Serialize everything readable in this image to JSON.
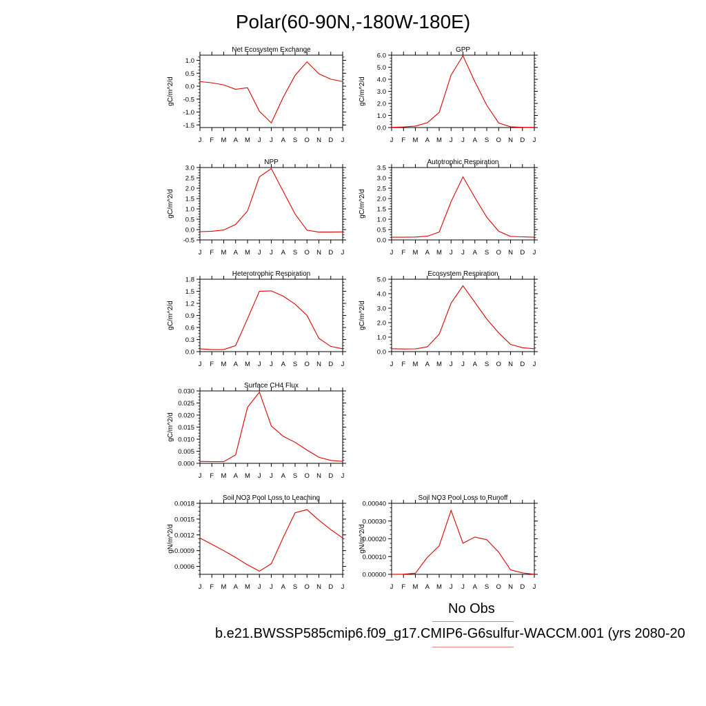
{
  "title": "Polar(60-90N,-180W-180E)",
  "legend": {
    "entries": [
      {
        "label": "No Obs",
        "color": "#8a8af0"
      },
      {
        "label": "b.e21.BWSSP585cmip6.f09_g17.CMIP6-G6sulfur-WACCM.001 (yrs 2080-20",
        "color": "#f08a8a"
      }
    ]
  },
  "chart_data": [
    {
      "type": "line",
      "title": "Net Ecosystem Exchange",
      "ylabel": "gC/m^2/d",
      "categories": [
        "J",
        "F",
        "M",
        "A",
        "M",
        "J",
        "J",
        "A",
        "S",
        "O",
        "N",
        "D",
        "J"
      ],
      "ylim": [
        -1.6,
        1.2
      ],
      "yticks": [
        "1.0",
        "0.5",
        "0.0",
        "-0.5",
        "-1.0",
        "-1.5"
      ],
      "ytick_values": [
        1.0,
        0.5,
        0.0,
        -0.5,
        -1.0,
        -1.5
      ],
      "series": [
        {
          "color": "#e00000",
          "values": [
            0.18,
            0.13,
            0.05,
            -0.12,
            -0.06,
            -0.97,
            -1.42,
            -0.43,
            0.42,
            0.94,
            0.48,
            0.27,
            0.18
          ]
        }
      ]
    },
    {
      "type": "line",
      "title": "GPP",
      "ylabel": "gC/m^2/d",
      "categories": [
        "J",
        "F",
        "M",
        "A",
        "M",
        "J",
        "J",
        "A",
        "S",
        "O",
        "N",
        "D",
        "J"
      ],
      "ylim": [
        0.0,
        6.0
      ],
      "yticks": [
        "6.0",
        "5.0",
        "4.0",
        "3.0",
        "2.0",
        "1.0",
        "0.0"
      ],
      "ytick_values": [
        6,
        5,
        4,
        3,
        2,
        1,
        0
      ],
      "series": [
        {
          "color": "#e00000",
          "values": [
            0.02,
            0.05,
            0.12,
            0.4,
            1.25,
            4.35,
            5.95,
            3.8,
            1.85,
            0.38,
            0.06,
            0.02,
            0.02
          ]
        }
      ]
    },
    {
      "type": "line",
      "title": "NPP",
      "ylabel": "gC/m^2/d",
      "categories": [
        "J",
        "F",
        "M",
        "A",
        "M",
        "J",
        "J",
        "A",
        "S",
        "O",
        "N",
        "D",
        "J"
      ],
      "ylim": [
        -0.5,
        3.0
      ],
      "yticks": [
        "3.0",
        "2.5",
        "2.0",
        "1.5",
        "1.0",
        "0.5",
        "0.0",
        "-0.5"
      ],
      "ytick_values": [
        3.0,
        2.5,
        2.0,
        1.5,
        1.0,
        0.5,
        0.0,
        -0.5
      ],
      "series": [
        {
          "color": "#e00000",
          "values": [
            -0.1,
            -0.08,
            -0.02,
            0.25,
            0.9,
            2.55,
            2.95,
            1.85,
            0.75,
            -0.03,
            -0.12,
            -0.12,
            -0.11
          ]
        }
      ]
    },
    {
      "type": "line",
      "title": "Autotrophic Respiration",
      "ylabel": "gC/m^2/d",
      "categories": [
        "J",
        "F",
        "M",
        "A",
        "M",
        "J",
        "J",
        "A",
        "S",
        "O",
        "N",
        "D",
        "J"
      ],
      "ylim": [
        0.0,
        3.5
      ],
      "yticks": [
        "3.5",
        "3.0",
        "2.5",
        "2.0",
        "1.5",
        "1.0",
        "0.5",
        "0.0"
      ],
      "ytick_values": [
        3.5,
        3.0,
        2.5,
        2.0,
        1.5,
        1.0,
        0.5,
        0.0
      ],
      "series": [
        {
          "color": "#e00000",
          "values": [
            0.13,
            0.13,
            0.14,
            0.18,
            0.38,
            1.85,
            3.05,
            2.05,
            1.1,
            0.42,
            0.17,
            0.15,
            0.13
          ]
        }
      ]
    },
    {
      "type": "line",
      "title": "Heterotrophic Respiration",
      "ylabel": "gC/m^2/d",
      "categories": [
        "J",
        "F",
        "M",
        "A",
        "M",
        "J",
        "J",
        "A",
        "S",
        "O",
        "N",
        "D",
        "J"
      ],
      "ylim": [
        0.0,
        1.8
      ],
      "yticks": [
        "1.8",
        "1.5",
        "1.2",
        "0.9",
        "0.6",
        "0.3",
        "0.0"
      ],
      "ytick_values": [
        1.8,
        1.5,
        1.2,
        0.9,
        0.6,
        0.3,
        0.0
      ],
      "series": [
        {
          "color": "#e00000",
          "values": [
            0.07,
            0.05,
            0.05,
            0.15,
            0.82,
            1.5,
            1.51,
            1.38,
            1.18,
            0.9,
            0.33,
            0.13,
            0.07
          ]
        }
      ]
    },
    {
      "type": "line",
      "title": "Ecosystem Respiration",
      "ylabel": "gC/m^2/d",
      "categories": [
        "J",
        "F",
        "M",
        "A",
        "M",
        "J",
        "J",
        "A",
        "S",
        "O",
        "N",
        "D",
        "J"
      ],
      "ylim": [
        0.0,
        5.0
      ],
      "yticks": [
        "5.0",
        "4.0",
        "3.0",
        "2.0",
        "1.0",
        "0.0"
      ],
      "ytick_values": [
        5,
        4,
        3,
        2,
        1,
        0
      ],
      "series": [
        {
          "color": "#e00000",
          "values": [
            0.2,
            0.18,
            0.19,
            0.33,
            1.2,
            3.35,
            4.55,
            3.4,
            2.25,
            1.3,
            0.5,
            0.27,
            0.2
          ]
        }
      ]
    },
    {
      "type": "line",
      "title": "Surface CH4 Flux",
      "ylabel": "gC/m^2/d",
      "categories": [
        "J",
        "F",
        "M",
        "A",
        "M",
        "J",
        "J",
        "A",
        "S",
        "O",
        "N",
        "D",
        "J"
      ],
      "ylim": [
        0.0,
        0.03
      ],
      "yticks": [
        "0.030",
        "0.025",
        "0.020",
        "0.015",
        "0.010",
        "0.005",
        "0.000"
      ],
      "ytick_values": [
        0.03,
        0.025,
        0.02,
        0.015,
        0.01,
        0.005,
        0.0
      ],
      "series": [
        {
          "color": "#e00000",
          "values": [
            0.0008,
            0.0007,
            0.0007,
            0.0035,
            0.0232,
            0.0295,
            0.0155,
            0.0112,
            0.0087,
            0.0055,
            0.0025,
            0.0012,
            0.0008
          ]
        }
      ]
    },
    {
      "type": "line",
      "title": "Soil NO3 Pool Loss to Leaching",
      "ylabel": "gN/m^2/d",
      "categories": [
        "J",
        "F",
        "M",
        "A",
        "M",
        "J",
        "J",
        "A",
        "S",
        "O",
        "N",
        "D",
        "J"
      ],
      "ylim": [
        0.00045,
        0.0018
      ],
      "yticks": [
        "0.0018",
        "0.0015",
        "0.0012",
        "0.0009",
        "0.0006"
      ],
      "ytick_values": [
        0.0018,
        0.0015,
        0.0012,
        0.0009,
        0.0006
      ],
      "series": [
        {
          "color": "#e00000",
          "values": [
            0.00114,
            0.00102,
            0.0009,
            0.00077,
            0.00063,
            0.00051,
            0.00065,
            0.00115,
            0.00162,
            0.00168,
            0.00148,
            0.0013,
            0.00114
          ]
        }
      ]
    },
    {
      "type": "line",
      "title": "Soil NO3 Pool Loss to Runoff",
      "ylabel": "gN/m^2/d",
      "categories": [
        "J",
        "F",
        "M",
        "A",
        "M",
        "J",
        "J",
        "A",
        "S",
        "O",
        "N",
        "D",
        "J"
      ],
      "ylim": [
        0.0,
        0.0004
      ],
      "yticks": [
        "0.00040",
        "0.00030",
        "0.00020",
        "0.00010",
        "0.00000"
      ],
      "ytick_values": [
        0.0004,
        0.0003,
        0.0002,
        0.0001,
        0.0
      ],
      "series": [
        {
          "color": "#e00000",
          "values": [
            5e-07,
            1e-06,
            6e-06,
            9.5e-05,
            0.00016,
            0.00036,
            0.000175,
            0.00021,
            0.000195,
            0.000125,
            2.5e-05,
            8e-06,
            5e-07
          ]
        }
      ]
    }
  ]
}
